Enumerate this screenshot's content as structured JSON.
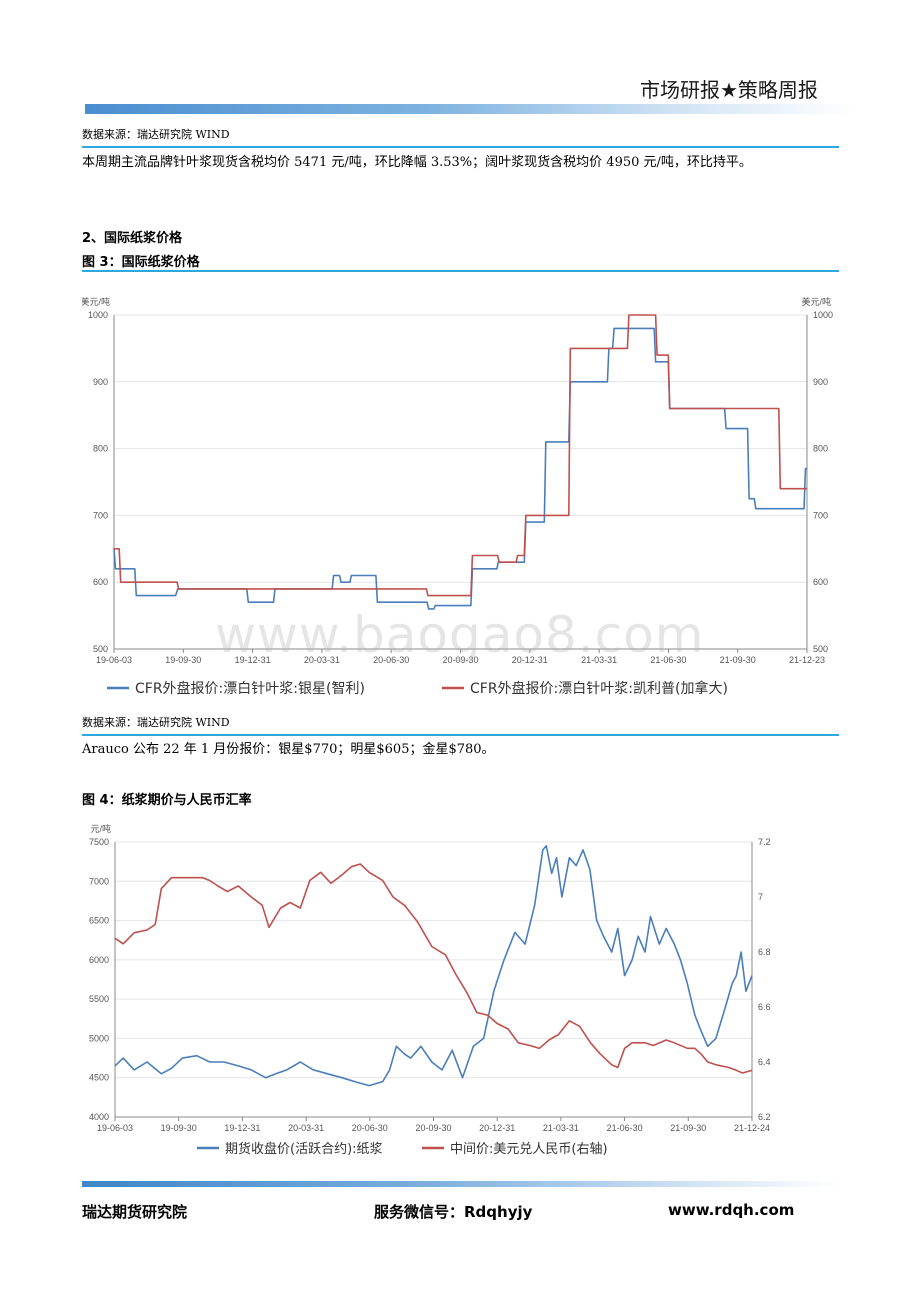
{
  "header": {
    "title": "市场研报★策略周报"
  },
  "section1": {
    "source": "数据来源：瑞达研究院 WIND",
    "paragraph": "本周期主流品牌针叶浆现货含税均价 5471 元/吨，环比降幅 3.53%；阔叶浆现货含税均价 4950 元/吨，环比持平。"
  },
  "section2": {
    "heading": "2、国际纸浆价格",
    "figure_title": "图 3：国际纸浆价格",
    "source": "数据来源：瑞达研究院 WIND",
    "paragraph": "Arauco 公布 22 年 1 月份报价：银星$770；明星$605；金星$780。"
  },
  "section3": {
    "figure_title": "图 4：纸浆期价与人民币汇率"
  },
  "watermark": "www.baogao8.com",
  "footer": {
    "institute": "瑞达期货研究院",
    "wechat": "服务微信号：Rdqhyjy",
    "website": "www.rdqh.com"
  },
  "chart_data": [
    {
      "type": "line",
      "ylabel_left": "美元/吨",
      "ylabel_right": "美元/吨",
      "ylim": [
        500,
        1000
      ],
      "yticks": [
        "500",
        "600",
        "700",
        "800",
        "900",
        "1000"
      ],
      "xlim": [
        "2019-06-03",
        "2021-12-23"
      ],
      "xticks": [
        "19-06-03",
        "19-09-30",
        "19-12-31",
        "20-03-31",
        "20-06-30",
        "20-09-30",
        "20-12-31",
        "21-03-31",
        "21-06-30",
        "21-09-30",
        "21-12-23"
      ],
      "grid": true,
      "legend_position": "bottom",
      "series": [
        {
          "name": "CFR外盘报价:漂白针叶浆:银星(智利)",
          "color": "#4a7ebb",
          "points": [
            [
              "2019-06-03",
              650
            ],
            [
              "2019-06-05",
              620
            ],
            [
              "2019-07-01",
              620
            ],
            [
              "2019-07-03",
              580
            ],
            [
              "2019-08-25",
              580
            ],
            [
              "2019-08-28",
              590
            ],
            [
              "2019-11-29",
              590
            ],
            [
              "2019-12-01",
              570
            ],
            [
              "2020-01-04",
              570
            ],
            [
              "2020-01-06",
              590
            ],
            [
              "2020-03-23",
              590
            ],
            [
              "2020-03-25",
              610
            ],
            [
              "2020-04-02",
              610
            ],
            [
              "2020-04-04",
              600
            ],
            [
              "2020-04-16",
              600
            ],
            [
              "2020-04-18",
              610
            ],
            [
              "2020-05-21",
              610
            ],
            [
              "2020-05-23",
              570
            ],
            [
              "2020-07-29",
              570
            ],
            [
              "2020-07-31",
              560
            ],
            [
              "2020-08-07",
              560
            ],
            [
              "2020-08-09",
              565
            ],
            [
              "2020-09-26",
              565
            ],
            [
              "2020-09-28",
              620
            ],
            [
              "2020-10-31",
              620
            ],
            [
              "2020-11-02",
              630
            ],
            [
              "2020-12-07",
              630
            ],
            [
              "2020-12-09",
              690
            ],
            [
              "2021-01-03",
              690
            ],
            [
              "2021-01-05",
              810
            ],
            [
              "2021-02-05",
              810
            ],
            [
              "2021-02-07",
              900
            ],
            [
              "2021-03-29",
              900
            ],
            [
              "2021-03-31",
              950
            ],
            [
              "2021-04-05",
              950
            ],
            [
              "2021-04-07",
              980
            ],
            [
              "2021-05-31",
              980
            ],
            [
              "2021-06-02",
              930
            ],
            [
              "2021-06-19",
              930
            ],
            [
              "2021-06-21",
              860
            ],
            [
              "2021-09-03",
              860
            ],
            [
              "2021-09-05",
              830
            ],
            [
              "2021-10-04",
              830
            ],
            [
              "2021-10-06",
              725
            ],
            [
              "2021-10-13",
              725
            ],
            [
              "2021-10-15",
              710
            ],
            [
              "2021-12-19",
              710
            ],
            [
              "2021-12-21",
              770
            ],
            [
              "2021-12-23",
              770
            ]
          ]
        },
        {
          "name": "CFR外盘报价:漂白针叶浆:凯利普(加拿大)",
          "color": "#c0504d",
          "points": [
            [
              "2019-06-03",
              650
            ],
            [
              "2019-06-10",
              650
            ],
            [
              "2019-06-12",
              600
            ],
            [
              "2019-08-27",
              600
            ],
            [
              "2019-08-29",
              590
            ],
            [
              "2020-07-28",
              590
            ],
            [
              "2020-07-30",
              580
            ],
            [
              "2020-09-26",
              580
            ],
            [
              "2020-09-28",
              640
            ],
            [
              "2020-11-01",
              640
            ],
            [
              "2020-11-03",
              630
            ],
            [
              "2020-11-26",
              630
            ],
            [
              "2020-11-28",
              640
            ],
            [
              "2020-12-07",
              640
            ],
            [
              "2020-12-09",
              700
            ],
            [
              "2021-02-05",
              700
            ],
            [
              "2021-02-07",
              950
            ],
            [
              "2021-04-25",
              950
            ],
            [
              "2021-04-27",
              1000
            ],
            [
              "2021-06-02",
              1000
            ],
            [
              "2021-06-04",
              940
            ],
            [
              "2021-06-19",
              940
            ],
            [
              "2021-06-21",
              860
            ],
            [
              "2021-11-15",
              860
            ],
            [
              "2021-11-17",
              740
            ],
            [
              "2021-12-23",
              740
            ]
          ]
        }
      ]
    },
    {
      "type": "line",
      "ylabel_left": "元/吨",
      "ylim_left": [
        4000,
        7500
      ],
      "yticks_left": [
        "4000",
        "4500",
        "5000",
        "5500",
        "6000",
        "6500",
        "7000",
        "7500"
      ],
      "ylim_right": [
        6.2,
        7.2
      ],
      "yticks_right": [
        "6.2",
        "6.4",
        "6.6",
        "6.8",
        "7",
        "7.2"
      ],
      "xlim": [
        "2019-06-03",
        "2021-12-24"
      ],
      "xticks": [
        "19-06-03",
        "19-09-30",
        "19-12-31",
        "20-03-31",
        "20-06-30",
        "20-09-30",
        "20-12-31",
        "21-03-31",
        "21-06-30",
        "21-09-30",
        "21-12-24"
      ],
      "grid": true,
      "legend_position": "bottom",
      "series": [
        {
          "name": "期货收盘价(活跃合约):纸浆",
          "axis": "left",
          "color": "#4a7ebb",
          "points": [
            [
              "2019-06-03",
              4650
            ],
            [
              "2019-06-15",
              4750
            ],
            [
              "2019-07-01",
              4600
            ],
            [
              "2019-07-20",
              4700
            ],
            [
              "2019-08-10",
              4550
            ],
            [
              "2019-08-25",
              4620
            ],
            [
              "2019-09-10",
              4750
            ],
            [
              "2019-10-01",
              4780
            ],
            [
              "2019-10-20",
              4700
            ],
            [
              "2019-11-10",
              4700
            ],
            [
              "2019-12-01",
              4650
            ],
            [
              "2019-12-20",
              4600
            ],
            [
              "2020-01-10",
              4500
            ],
            [
              "2020-01-25",
              4550
            ],
            [
              "2020-02-10",
              4600
            ],
            [
              "2020-03-01",
              4700
            ],
            [
              "2020-03-20",
              4600
            ],
            [
              "2020-04-10",
              4550
            ],
            [
              "2020-05-01",
              4500
            ],
            [
              "2020-05-20",
              4450
            ],
            [
              "2020-06-10",
              4400
            ],
            [
              "2020-06-30",
              4450
            ],
            [
              "2020-07-10",
              4600
            ],
            [
              "2020-07-20",
              4900
            ],
            [
              "2020-08-01",
              4800
            ],
            [
              "2020-08-10",
              4750
            ],
            [
              "2020-08-25",
              4900
            ],
            [
              "2020-09-10",
              4700
            ],
            [
              "2020-09-25",
              4600
            ],
            [
              "2020-10-10",
              4850
            ],
            [
              "2020-10-25",
              4500
            ],
            [
              "2020-11-10",
              4900
            ],
            [
              "2020-11-25",
              5000
            ],
            [
              "2020-12-10",
              5600
            ],
            [
              "2020-12-25",
              6000
            ],
            [
              "2021-01-10",
              6350
            ],
            [
              "2021-01-25",
              6200
            ],
            [
              "2021-02-08",
              6700
            ],
            [
              "2021-02-20",
              7400
            ],
            [
              "2021-02-25",
              7450
            ],
            [
              "2021-03-05",
              7100
            ],
            [
              "2021-03-12",
              7300
            ],
            [
              "2021-03-20",
              6800
            ],
            [
              "2021-03-31",
              7300
            ],
            [
              "2021-04-10",
              7200
            ],
            [
              "2021-04-20",
              7400
            ],
            [
              "2021-04-30",
              7150
            ],
            [
              "2021-05-10",
              6500
            ],
            [
              "2021-05-20",
              6300
            ],
            [
              "2021-06-01",
              6100
            ],
            [
              "2021-06-10",
              6400
            ],
            [
              "2021-06-20",
              5800
            ],
            [
              "2021-07-01",
              6000
            ],
            [
              "2021-07-10",
              6300
            ],
            [
              "2021-07-20",
              6100
            ],
            [
              "2021-07-28",
              6550
            ],
            [
              "2021-08-10",
              6200
            ],
            [
              "2021-08-20",
              6400
            ],
            [
              "2021-09-01",
              6200
            ],
            [
              "2021-09-10",
              6000
            ],
            [
              "2021-09-20",
              5700
            ],
            [
              "2021-10-01",
              5300
            ],
            [
              "2021-10-10",
              5100
            ],
            [
              "2021-10-20",
              4900
            ],
            [
              "2021-11-01",
              5000
            ],
            [
              "2021-11-15",
              5400
            ],
            [
              "2021-11-25",
              5700
            ],
            [
              "2021-12-01",
              5800
            ],
            [
              "2021-12-08",
              6100
            ],
            [
              "2021-12-15",
              5600
            ],
            [
              "2021-12-24",
              5800
            ]
          ]
        },
        {
          "name": "中间价:美元兑人民币(右轴)",
          "axis": "right",
          "color": "#c0504d",
          "points": [
            [
              "2019-06-03",
              6.85
            ],
            [
              "2019-06-15",
              6.83
            ],
            [
              "2019-07-01",
              6.87
            ],
            [
              "2019-07-20",
              6.88
            ],
            [
              "2019-08-01",
              6.9
            ],
            [
              "2019-08-10",
              7.03
            ],
            [
              "2019-08-25",
              7.07
            ],
            [
              "2019-09-10",
              7.07
            ],
            [
              "2019-09-30",
              7.07
            ],
            [
              "2019-10-10",
              7.07
            ],
            [
              "2019-10-20",
              7.06
            ],
            [
              "2019-11-01",
              7.04
            ],
            [
              "2019-11-15",
              7.02
            ],
            [
              "2019-12-01",
              7.04
            ],
            [
              "2019-12-20",
              7.0
            ],
            [
              "2020-01-05",
              6.97
            ],
            [
              "2020-01-15",
              6.89
            ],
            [
              "2020-02-01",
              6.96
            ],
            [
              "2020-02-15",
              6.98
            ],
            [
              "2020-03-01",
              6.96
            ],
            [
              "2020-03-15",
              7.06
            ],
            [
              "2020-03-31",
              7.09
            ],
            [
              "2020-04-15",
              7.05
            ],
            [
              "2020-05-01",
              7.08
            ],
            [
              "2020-05-15",
              7.11
            ],
            [
              "2020-05-28",
              7.12
            ],
            [
              "2020-06-10",
              7.09
            ],
            [
              "2020-06-30",
              7.06
            ],
            [
              "2020-07-15",
              7.0
            ],
            [
              "2020-08-01",
              6.97
            ],
            [
              "2020-08-20",
              6.91
            ],
            [
              "2020-09-10",
              6.82
            ],
            [
              "2020-09-30",
              6.79
            ],
            [
              "2020-10-15",
              6.72
            ],
            [
              "2020-11-01",
              6.65
            ],
            [
              "2020-11-15",
              6.58
            ],
            [
              "2020-12-01",
              6.57
            ],
            [
              "2020-12-15",
              6.54
            ],
            [
              "2020-12-31",
              6.52
            ],
            [
              "2021-01-15",
              6.47
            ],
            [
              "2021-02-01",
              6.46
            ],
            [
              "2021-02-15",
              6.45
            ],
            [
              "2021-03-01",
              6.48
            ],
            [
              "2021-03-15",
              6.5
            ],
            [
              "2021-03-31",
              6.55
            ],
            [
              "2021-04-15",
              6.53
            ],
            [
              "2021-05-01",
              6.47
            ],
            [
              "2021-05-15",
              6.43
            ],
            [
              "2021-06-01",
              6.39
            ],
            [
              "2021-06-10",
              6.38
            ],
            [
              "2021-06-20",
              6.45
            ],
            [
              "2021-07-01",
              6.47
            ],
            [
              "2021-07-20",
              6.47
            ],
            [
              "2021-08-01",
              6.46
            ],
            [
              "2021-08-20",
              6.48
            ],
            [
              "2021-09-01",
              6.47
            ],
            [
              "2021-09-20",
              6.45
            ],
            [
              "2021-10-01",
              6.45
            ],
            [
              "2021-10-10",
              6.43
            ],
            [
              "2021-10-20",
              6.4
            ],
            [
              "2021-11-01",
              6.39
            ],
            [
              "2021-11-20",
              6.38
            ],
            [
              "2021-12-01",
              6.37
            ],
            [
              "2021-12-10",
              6.36
            ],
            [
              "2021-12-24",
              6.37
            ]
          ]
        }
      ]
    }
  ]
}
